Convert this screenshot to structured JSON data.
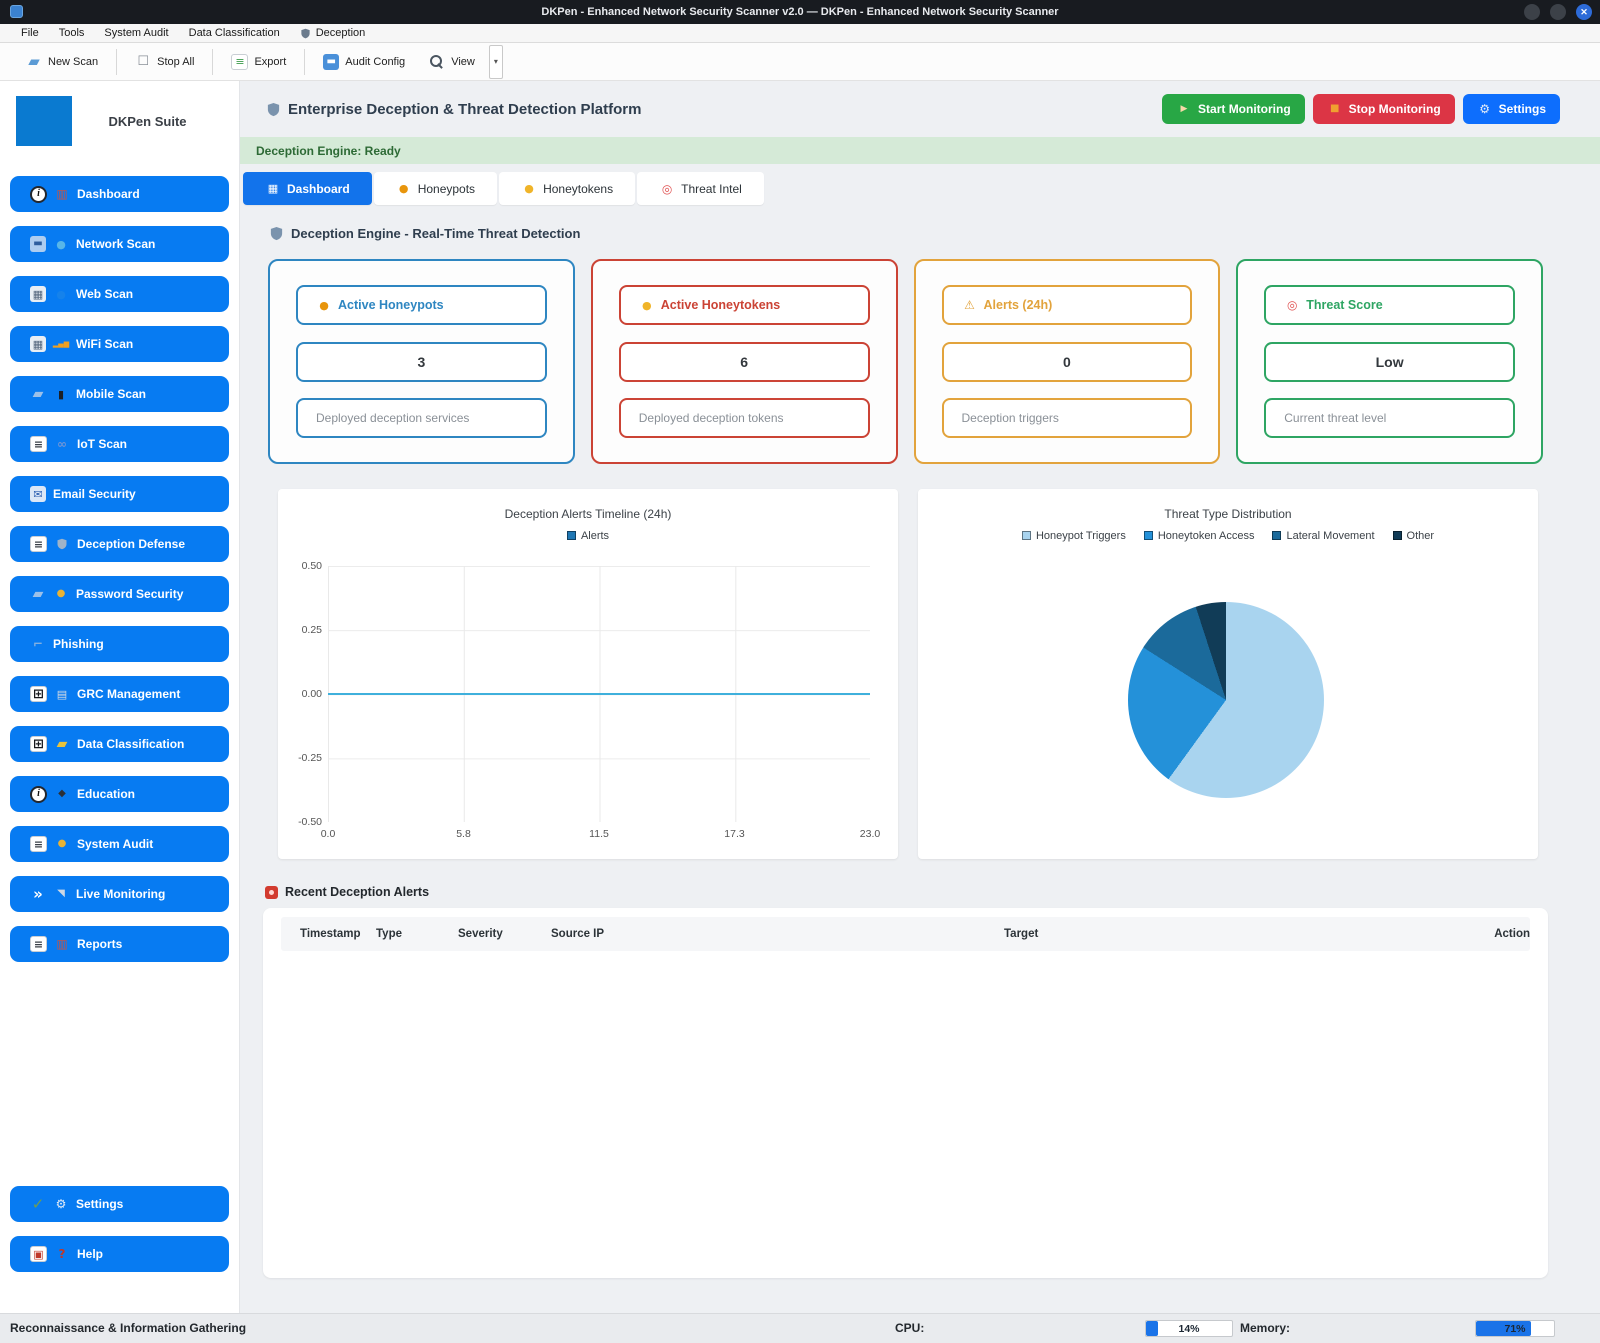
{
  "window": {
    "title": "DKPen - Enhanced Network Security Scanner v2.0 — DKPen - Enhanced Network Security Scanner",
    "controls": [
      "minimize-icon",
      "maximize-icon",
      "close-icon"
    ],
    "close_glyph": "✕"
  },
  "menubar": {
    "items": [
      {
        "label": "File"
      },
      {
        "label": "Tools"
      },
      {
        "label": "System Audit"
      },
      {
        "label": "Data Classification"
      },
      {
        "label": "Deception",
        "icon": "shield-menu-icon"
      }
    ]
  },
  "toolbar": {
    "items": [
      {
        "label": "New Scan",
        "icon": "new-scan-icon"
      },
      {
        "label": "Stop All",
        "icon": "stop-all-icon"
      },
      {
        "label": "Export",
        "icon": "export-icon"
      },
      {
        "label": "Audit Config",
        "icon": "audit-config-icon"
      },
      {
        "label": "View",
        "icon": "view-magnifier-icon",
        "has_dropdown": true
      }
    ],
    "dropdown_glyph": "▾"
  },
  "sidebar": {
    "suite_title": "DKPen Suite",
    "items": [
      {
        "label": "Dashboard",
        "icon": "info-icon",
        "icon2": "chart-icon"
      },
      {
        "label": "Network Scan",
        "icon": "monitor-icon",
        "icon2": "globe-icon"
      },
      {
        "label": "Web Scan",
        "icon": "scanner-icon",
        "icon2": "globe-faint-icon"
      },
      {
        "label": "WiFi Scan",
        "icon": "scanner-icon",
        "icon2": "wifi-bars-icon"
      },
      {
        "label": "Mobile Scan",
        "icon": "folder-icon",
        "icon2": "phone-icon"
      },
      {
        "label": "IoT Scan",
        "icon": "document-icon",
        "icon2": "link-icon"
      },
      {
        "label": "Email Security",
        "icon": "email-icon"
      },
      {
        "label": "Deception Defense",
        "icon": "document-icon",
        "icon2": "shield-small-icon"
      },
      {
        "label": "Password Security",
        "icon": "folder-icon",
        "icon2": "lock-gold-icon"
      },
      {
        "label": "Phishing",
        "icon": "fishing-icon"
      },
      {
        "label": "GRC Management",
        "icon": "grid-icon",
        "icon2": "building-icon"
      },
      {
        "label": "Data Classification",
        "icon": "grid-icon",
        "icon2": "folder-yellow-icon"
      },
      {
        "label": "Education",
        "icon": "info-icon",
        "icon2": "gradcap-icon"
      },
      {
        "label": "System Audit",
        "icon": "document-icon",
        "icon2": "lock-gold-icon"
      },
      {
        "label": "Live Monitoring",
        "icon": "chevrons-icon",
        "icon2": "satellite-icon"
      },
      {
        "label": "Reports",
        "icon": "document-icon",
        "icon2": "chart-icon"
      }
    ],
    "bottom_items": [
      {
        "label": "Settings",
        "icon": "check-icon",
        "icon2": "gear-icon"
      },
      {
        "label": "Help",
        "icon": "help-doc-icon",
        "icon2": "question-icon"
      }
    ]
  },
  "header": {
    "title": "Enterprise Deception & Threat Detection Platform",
    "title_icon": "shield-icon",
    "buttons": [
      {
        "label": "Start Monitoring",
        "icon": "rocket-icon",
        "color": "#28a745"
      },
      {
        "label": "Stop Monitoring",
        "icon": "stop-square-icon",
        "color": "#dc3545"
      },
      {
        "label": "Settings",
        "icon": "gear-icon",
        "color": "#0d6efd"
      }
    ]
  },
  "banner": {
    "text": "Deception Engine: Ready"
  },
  "tabs": [
    {
      "label": "Dashboard",
      "icon": "dashboard-tab-icon",
      "active": true
    },
    {
      "label": "Honeypots",
      "icon": "honeypot-icon",
      "active": false
    },
    {
      "label": "Honeytokens",
      "icon": "honeytoken-key-icon",
      "active": false
    },
    {
      "label": "Threat Intel",
      "icon": "target-icon",
      "active": false
    }
  ],
  "section": {
    "title": "Deception Engine - Real-Time Threat Detection",
    "icon": "shield-icon"
  },
  "stat_cards": [
    {
      "label": "Active Honeypots",
      "icon": "honeypot-icon",
      "value": "3",
      "description": "Deployed deception services",
      "color": "#2e86c1"
    },
    {
      "label": "Active Honeytokens",
      "icon": "honeytoken-key-icon",
      "value": "6",
      "description": "Deployed deception tokens",
      "color": "#cb4335"
    },
    {
      "label": "Alerts (24h)",
      "icon": "warning-icon",
      "value": "0",
      "description": "Deception triggers",
      "color": "#e2a33c"
    },
    {
      "label": "Threat Score",
      "icon": "target-icon",
      "value": "Low",
      "description": "Current threat level",
      "color": "#2ea563"
    }
  ],
  "chart_data": [
    {
      "type": "line",
      "title": "Deception Alerts Timeline (24h)",
      "series": [
        {
          "name": "Alerts",
          "x": [
            0,
            23
          ],
          "values": [
            0,
            0
          ]
        }
      ],
      "legend": [
        "Alerts"
      ],
      "legend_color": "#1f77b4",
      "line_color": "#3fb0dc",
      "x_ticks": [
        "0.0",
        "5.8",
        "11.5",
        "17.3",
        "23.0"
      ],
      "y_ticks": [
        "0.50",
        "0.25",
        "0.00",
        "-0.25",
        "-0.50"
      ],
      "xlim": [
        0,
        23
      ],
      "ylim": [
        -0.5,
        0.5
      ],
      "grid": true,
      "legend_position": "top"
    },
    {
      "type": "pie",
      "title": "Threat Type Distribution",
      "slices": [
        {
          "label": "Honeypot Triggers",
          "value": 60,
          "color": "#a9d4ef"
        },
        {
          "label": "Honeytoken Access",
          "value": 24,
          "color": "#2491d9"
        },
        {
          "label": "Lateral Movement",
          "value": 11,
          "color": "#1b6a9b"
        },
        {
          "label": "Other",
          "value": 5,
          "color": "#113c57"
        }
      ],
      "legend_position": "top"
    }
  ],
  "alerts": {
    "title": "Recent Deception Alerts",
    "icon": "alarm-icon",
    "columns": [
      "Timestamp",
      "Type",
      "Severity",
      "Source IP",
      "Target",
      "Action"
    ],
    "rows": []
  },
  "statusbar": {
    "left_text": "Reconnaissance & Information Gathering",
    "cpu_label": "CPU:",
    "cpu_value": "14%",
    "cpu_percent": 14,
    "memory_label": "Memory:",
    "memory_value": "71%",
    "memory_percent": 71
  }
}
